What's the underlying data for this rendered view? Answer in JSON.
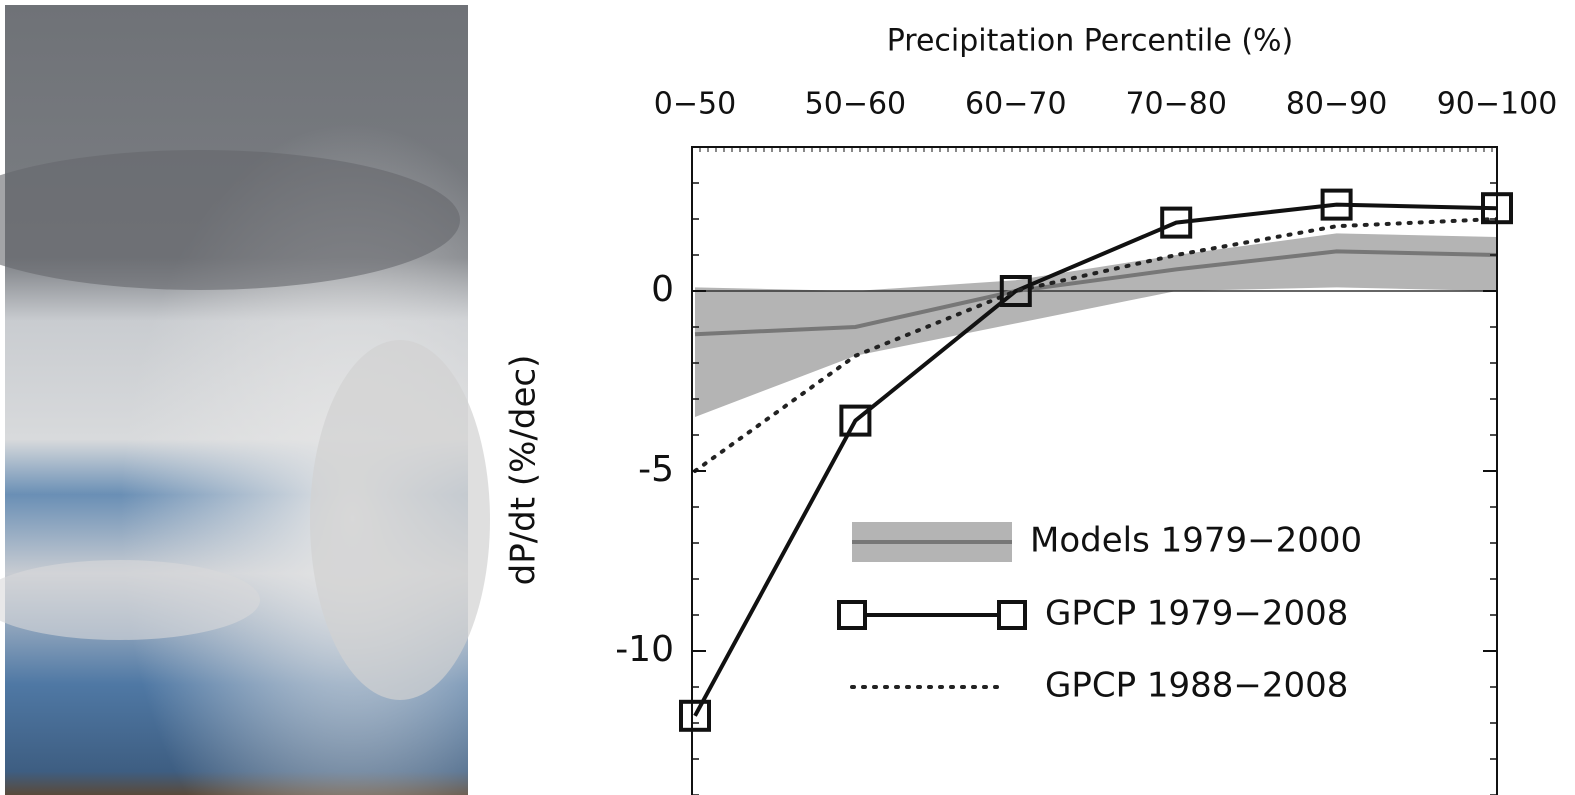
{
  "chart_data": {
    "type": "line",
    "x_axis_title": "Precipitation Percentile (%)",
    "y_axis_title": "dP/dt (%/dec)",
    "categories": [
      "0−50",
      "50−60",
      "60−70",
      "70−80",
      "80−90",
      "90−100"
    ],
    "ylim": [
      -14,
      4
    ],
    "yticks": [
      -10,
      -5,
      0
    ],
    "series": [
      {
        "name": "Models 1979−2000",
        "color": "#777777",
        "band_color": "#b4b4b4",
        "style": "band",
        "values": [
          -1.2,
          -1.0,
          0,
          0.6,
          1.1,
          1.0
        ],
        "lower": [
          -3.5,
          -1.8,
          -0.9,
          0,
          0.1,
          0
        ],
        "upper": [
          0.1,
          0,
          0.3,
          1.0,
          1.6,
          1.5
        ]
      },
      {
        "name": "GPCP 1979−2008",
        "color": "#111111",
        "style": "markers",
        "values": [
          -11.8,
          -3.6,
          0,
          1.9,
          2.4,
          2.3
        ]
      },
      {
        "name": "GPCP 1988−2008",
        "color": "#222222",
        "style": "dotted",
        "values": [
          -5.0,
          -1.8,
          0,
          1.0,
          1.8,
          2.0
        ]
      }
    ]
  }
}
